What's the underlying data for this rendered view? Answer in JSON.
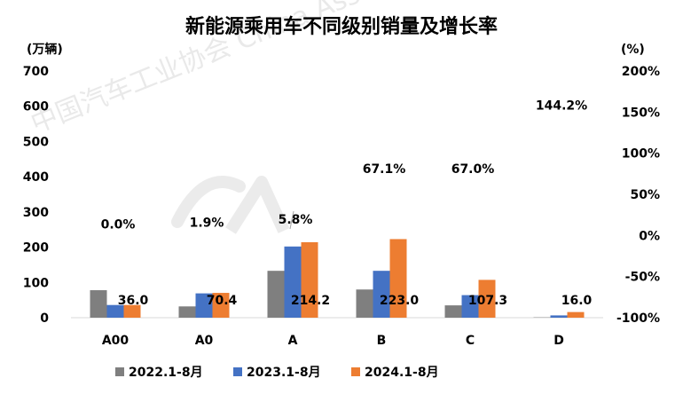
{
  "chart_data": {
    "type": "bar",
    "title": "新能源乘用车不同级别销量及增长率",
    "y_unit_left": "(万辆)",
    "y_unit_right": "(%)",
    "categories": [
      "A00",
      "A0",
      "A",
      "B",
      "C",
      "D"
    ],
    "ylim_left": [
      0,
      700
    ],
    "yticks_left": [
      "0",
      "100",
      "200",
      "300",
      "400",
      "500",
      "600",
      "700"
    ],
    "ylim_right": [
      -100,
      200
    ],
    "yticks_right": [
      "-100%",
      "-50%",
      "0%",
      "50%",
      "100%",
      "150%",
      "200%"
    ],
    "series": [
      {
        "name": "2022.1-8月",
        "color": "#7f7f7f",
        "values": [
          78,
          32,
          133,
          80,
          35,
          1
        ]
      },
      {
        "name": "2023.1-8月",
        "color": "#4472c4",
        "values": [
          36,
          69,
          202,
          133,
          64,
          6.5
        ]
      },
      {
        "name": "2024.1-8月",
        "color": "#ed7d31",
        "values": [
          36.0,
          70.4,
          214.2,
          223.0,
          107.3,
          16.0
        ]
      }
    ],
    "data_labels": [
      "36.0",
      "70.4",
      "214.2",
      "223.0",
      "107.3",
      "16.0"
    ],
    "growth_rates": [
      "0.0%",
      "1.9%",
      "5.8%",
      "67.1%",
      "67.0%",
      "144.2%"
    ],
    "grid": false,
    "legend_position": "bottom",
    "watermark": "中国汽车工业协会 China Association of Automobile Manufacturers"
  }
}
